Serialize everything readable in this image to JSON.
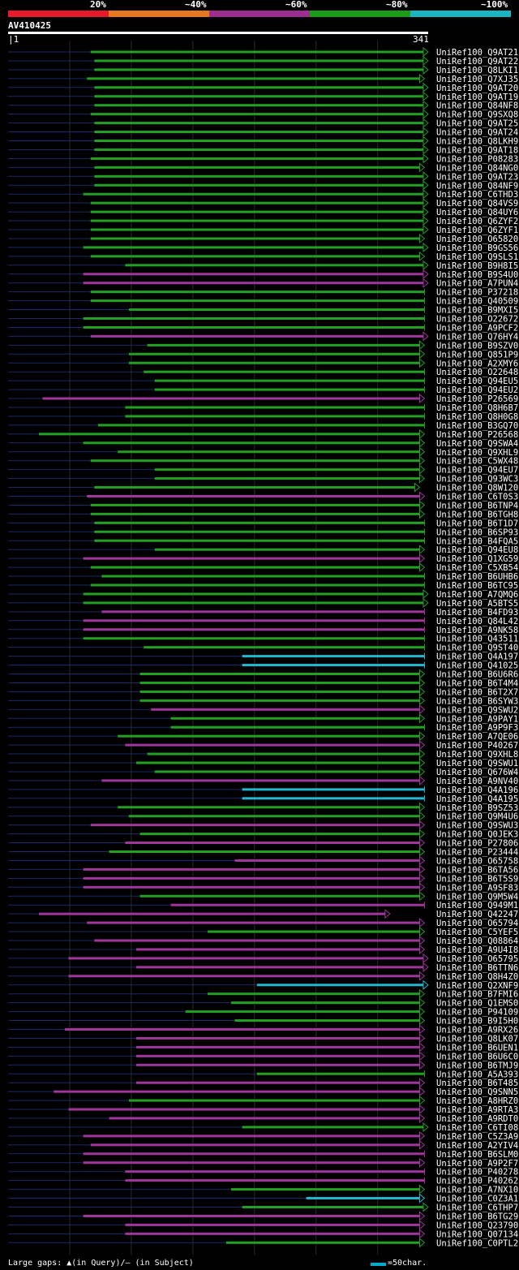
{
  "legend": [
    {
      "label": "20%",
      "color": "#e8192c"
    },
    {
      "label": "~40%",
      "color": "#e87722"
    },
    {
      "label": "~60%",
      "color": "#9b2f8f"
    },
    {
      "label": "~80%",
      "color": "#1a9b1a"
    },
    {
      "label": "~100%",
      "color": "#19b5c0"
    }
  ],
  "query": {
    "name": "AV410425",
    "start": "1",
    "end": "341",
    "length": 341
  },
  "footer": {
    "gaps_text": "Large gaps: ▲(in Query)/– (in Subject)",
    "scale_text": "=50char."
  },
  "chart_data": {
    "type": "alignment",
    "query_length": 341,
    "hits": [
      {
        "name": "UniRef100_Q9AT21",
        "s": 67,
        "e": 341,
        "c": "g",
        "arrow": true
      },
      {
        "name": "UniRef100_Q9AT22",
        "s": 70,
        "e": 341,
        "c": "g",
        "arrow": true
      },
      {
        "name": "UniRef100_Q8LKI1",
        "s": 70,
        "e": 341,
        "c": "g",
        "arrow": true
      },
      {
        "name": "UniRef100_Q7XJ35",
        "s": 64,
        "e": 338,
        "c": "g",
        "arrow": true
      },
      {
        "name": "UniRef100_Q9AT20",
        "s": 70,
        "e": 341,
        "c": "g",
        "arrow": true
      },
      {
        "name": "UniRef100_Q9AT19",
        "s": 70,
        "e": 341,
        "c": "g",
        "arrow": true
      },
      {
        "name": "UniRef100_Q84NF8",
        "s": 70,
        "e": 341,
        "c": "g",
        "arrow": true
      },
      {
        "name": "UniRef100_Q9SXQ8",
        "s": 67,
        "e": 341,
        "c": "g",
        "arrow": true
      },
      {
        "name": "UniRef100_Q9AT25",
        "s": 70,
        "e": 341,
        "c": "g",
        "arrow": true
      },
      {
        "name": "UniRef100_Q9AT24",
        "s": 70,
        "e": 341,
        "c": "g",
        "arrow": true
      },
      {
        "name": "UniRef100_Q8LKH9",
        "s": 70,
        "e": 341,
        "c": "g",
        "arrow": true
      },
      {
        "name": "UniRef100_Q9AT18",
        "s": 70,
        "e": 341,
        "c": "g",
        "arrow": true
      },
      {
        "name": "UniRef100_P08283",
        "s": 67,
        "e": 341,
        "c": "g",
        "arrow": true
      },
      {
        "name": "UniRef100_Q84NG0",
        "s": 70,
        "e": 338,
        "c": "g",
        "arrow": true
      },
      {
        "name": "UniRef100_Q9AT23",
        "s": 70,
        "e": 341,
        "c": "g",
        "arrow": true
      },
      {
        "name": "UniRef100_Q84NF9",
        "s": 70,
        "e": 341,
        "c": "g",
        "arrow": true
      },
      {
        "name": "UniRef100_C6THD3",
        "s": 61,
        "e": 341,
        "c": "g",
        "arrow": true
      },
      {
        "name": "UniRef100_Q84VS9",
        "s": 67,
        "e": 341,
        "c": "g",
        "arrow": true
      },
      {
        "name": "UniRef100_Q84UY6",
        "s": 67,
        "e": 341,
        "c": "g",
        "arrow": true
      },
      {
        "name": "UniRef100_Q6ZYF2",
        "s": 67,
        "e": 341,
        "c": "g",
        "arrow": true
      },
      {
        "name": "UniRef100_Q6ZYF1",
        "s": 67,
        "e": 341,
        "c": "g",
        "arrow": true
      },
      {
        "name": "UniRef100_O65820",
        "s": 67,
        "e": 338,
        "c": "g",
        "arrow": true
      },
      {
        "name": "UniRef100_B9GS56",
        "s": 61,
        "e": 341,
        "c": "g",
        "arrow": true
      },
      {
        "name": "UniRef100_Q9SLS1",
        "s": 67,
        "e": 338,
        "c": "g",
        "arrow": true
      },
      {
        "name": "UniRef100_B9H8I5",
        "s": 95,
        "e": 341,
        "c": "g",
        "arrow": true
      },
      {
        "name": "UniRef100_B9S4U0",
        "s": 61,
        "e": 341,
        "c": "p",
        "arrow": true
      },
      {
        "name": "UniRef100_A7PUN4",
        "s": 61,
        "e": 341,
        "c": "p",
        "arrow": true
      },
      {
        "name": "UniRef100_P37218",
        "s": 67,
        "e": 338,
        "c": "g",
        "arrow": false
      },
      {
        "name": "UniRef100_Q40509",
        "s": 67,
        "e": 338,
        "c": "g",
        "arrow": false
      },
      {
        "name": "UniRef100_B9MXI5",
        "s": 98,
        "e": 338,
        "c": "g",
        "arrow": false
      },
      {
        "name": "UniRef100_O22672",
        "s": 61,
        "e": 338,
        "c": "g",
        "arrow": false
      },
      {
        "name": "UniRef100_A9PCF2",
        "s": 61,
        "e": 338,
        "c": "g",
        "arrow": false
      },
      {
        "name": "UniRef100_Q76HY4",
        "s": 67,
        "e": 341,
        "c": "p",
        "arrow": true
      },
      {
        "name": "UniRef100_B9SZV0",
        "s": 113,
        "e": 338,
        "c": "g",
        "arrow": true
      },
      {
        "name": "UniRef100_Q851P9",
        "s": 98,
        "e": 338,
        "c": "g",
        "arrow": true
      },
      {
        "name": "UniRef100_A2XMY6",
        "s": 98,
        "e": 338,
        "c": "g",
        "arrow": true
      },
      {
        "name": "UniRef100_O22648",
        "s": 110,
        "e": 338,
        "c": "g",
        "arrow": false
      },
      {
        "name": "UniRef100_Q94EU5",
        "s": 119,
        "e": 338,
        "c": "g",
        "arrow": false
      },
      {
        "name": "UniRef100_Q94EU2",
        "s": 119,
        "e": 338,
        "c": "g",
        "arrow": false
      },
      {
        "name": "UniRef100_P26569",
        "s": 28,
        "e": 338,
        "c": "p",
        "arrow": true
      },
      {
        "name": "UniRef100_Q8H6B7",
        "s": 95,
        "e": 338,
        "c": "g",
        "arrow": false
      },
      {
        "name": "UniRef100_Q8H0G8",
        "s": 95,
        "e": 338,
        "c": "g",
        "arrow": false
      },
      {
        "name": "UniRef100_B3GQ70",
        "s": 73,
        "e": 338,
        "c": "g",
        "arrow": false
      },
      {
        "name": "UniRef100_P26568",
        "s": 25,
        "e": 338,
        "c": "g",
        "arrow": true
      },
      {
        "name": "UniRef100_Q9SWA4",
        "s": 61,
        "e": 338,
        "c": "g",
        "arrow": true
      },
      {
        "name": "UniRef100_Q9XHL9",
        "s": 89,
        "e": 338,
        "c": "g",
        "arrow": true
      },
      {
        "name": "UniRef100_C5WX48",
        "s": 67,
        "e": 338,
        "c": "g",
        "arrow": true
      },
      {
        "name": "UniRef100_Q94EU7",
        "s": 119,
        "e": 338,
        "c": "g",
        "arrow": true
      },
      {
        "name": "UniRef100_Q93WC3",
        "s": 119,
        "e": 338,
        "c": "g",
        "arrow": true
      },
      {
        "name": "UniRef100_Q8W120",
        "s": 70,
        "e": 334,
        "c": "g",
        "arrow": true
      },
      {
        "name": "UniRef100_C6T0S3",
        "s": 64,
        "e": 338,
        "c": "p",
        "arrow": true
      },
      {
        "name": "UniRef100_B6TNP4",
        "s": 67,
        "e": 338,
        "c": "g",
        "arrow": true
      },
      {
        "name": "UniRef100_B6TGH8",
        "s": 67,
        "e": 338,
        "c": "g",
        "arrow": true
      },
      {
        "name": "UniRef100_B6T1D7",
        "s": 70,
        "e": 338,
        "c": "g",
        "arrow": false
      },
      {
        "name": "UniRef100_B6SP93",
        "s": 70,
        "e": 338,
        "c": "g",
        "arrow": false
      },
      {
        "name": "UniRef100_B4FQA5",
        "s": 70,
        "e": 338,
        "c": "g",
        "arrow": false
      },
      {
        "name": "UniRef100_Q94EU8",
        "s": 119,
        "e": 338,
        "c": "g",
        "arrow": true
      },
      {
        "name": "UniRef100_Q1XG59",
        "s": 61,
        "e": 338,
        "c": "p",
        "arrow": true
      },
      {
        "name": "UniRef100_C5XB54",
        "s": 67,
        "e": 338,
        "c": "g",
        "arrow": true
      },
      {
        "name": "UniRef100_B6UHB6",
        "s": 76,
        "e": 338,
        "c": "g",
        "arrow": false
      },
      {
        "name": "UniRef100_B6TC95",
        "s": 67,
        "e": 338,
        "c": "g",
        "arrow": false
      },
      {
        "name": "UniRef100_A7QMQ6",
        "s": 61,
        "e": 341,
        "c": "g",
        "arrow": true
      },
      {
        "name": "UniRef100_A5BTS5",
        "s": 61,
        "e": 341,
        "c": "g",
        "arrow": true
      },
      {
        "name": "UniRef100_B4FD93",
        "s": 76,
        "e": 338,
        "c": "p",
        "arrow": false
      },
      {
        "name": "UniRef100_Q84L42",
        "s": 61,
        "e": 338,
        "c": "p",
        "arrow": false
      },
      {
        "name": "UniRef100_A9NK58",
        "s": 61,
        "e": 338,
        "c": "p",
        "arrow": false
      },
      {
        "name": "UniRef100_Q43511",
        "s": 61,
        "e": 338,
        "c": "g",
        "arrow": false
      },
      {
        "name": "UniRef100_Q9ST40",
        "s": 110,
        "e": 338,
        "c": "g",
        "arrow": false
      },
      {
        "name": "UniRef100_Q4A197",
        "s": 190,
        "e": 338,
        "c": "c",
        "arrow": false
      },
      {
        "name": "UniRef100_Q41025",
        "s": 190,
        "e": 338,
        "c": "c",
        "arrow": false
      },
      {
        "name": "UniRef100_B6U6R6",
        "s": 107,
        "e": 338,
        "c": "g",
        "arrow": true
      },
      {
        "name": "UniRef100_B6T4M4",
        "s": 107,
        "e": 338,
        "c": "g",
        "arrow": true
      },
      {
        "name": "UniRef100_B6T2X7",
        "s": 107,
        "e": 338,
        "c": "g",
        "arrow": true
      },
      {
        "name": "UniRef100_B6SYW3",
        "s": 107,
        "e": 338,
        "c": "g",
        "arrow": true
      },
      {
        "name": "UniRef100_Q9SWU2",
        "s": 116,
        "e": 338,
        "c": "p",
        "arrow": true
      },
      {
        "name": "UniRef100_A9PAY1",
        "s": 132,
        "e": 338,
        "c": "g",
        "arrow": true
      },
      {
        "name": "UniRef100_A9P9F3",
        "s": 132,
        "e": 338,
        "c": "g",
        "arrow": false
      },
      {
        "name": "UniRef100_A7QE06",
        "s": 89,
        "e": 338,
        "c": "g",
        "arrow": true
      },
      {
        "name": "UniRef100_P40267",
        "s": 95,
        "e": 338,
        "c": "p",
        "arrow": true
      },
      {
        "name": "UniRef100_Q9XHL8",
        "s": 113,
        "e": 338,
        "c": "g",
        "arrow": true
      },
      {
        "name": "UniRef100_Q9SWU1",
        "s": 104,
        "e": 338,
        "c": "g",
        "arrow": true
      },
      {
        "name": "UniRef100_Q676W4",
        "s": 119,
        "e": 338,
        "c": "g",
        "arrow": true
      },
      {
        "name": "UniRef100_A9NV40",
        "s": 76,
        "e": 338,
        "c": "p",
        "arrow": true
      },
      {
        "name": "UniRef100_Q4A196",
        "s": 190,
        "e": 338,
        "c": "c",
        "arrow": false
      },
      {
        "name": "UniRef100_Q4A195",
        "s": 190,
        "e": 338,
        "c": "c",
        "arrow": false
      },
      {
        "name": "UniRef100_B9SZ53",
        "s": 89,
        "e": 338,
        "c": "g",
        "arrow": true
      },
      {
        "name": "UniRef100_Q9M4U6",
        "s": 98,
        "e": 338,
        "c": "g",
        "arrow": true
      },
      {
        "name": "UniRef100_Q9SWU3",
        "s": 67,
        "e": 338,
        "c": "p",
        "arrow": true
      },
      {
        "name": "UniRef100_Q0JEK3",
        "s": 107,
        "e": 338,
        "c": "g",
        "arrow": true
      },
      {
        "name": "UniRef100_P27806",
        "s": 95,
        "e": 338,
        "c": "p",
        "arrow": true
      },
      {
        "name": "UniRef100_P23444",
        "s": 82,
        "e": 338,
        "c": "g",
        "arrow": true
      },
      {
        "name": "UniRef100_O65758",
        "s": 184,
        "e": 338,
        "c": "p",
        "arrow": true
      },
      {
        "name": "UniRef100_B6TA56",
        "s": 61,
        "e": 338,
        "c": "p",
        "arrow": true
      },
      {
        "name": "UniRef100_B6T5S9",
        "s": 61,
        "e": 338,
        "c": "p",
        "arrow": true
      },
      {
        "name": "UniRef100_A9SF83",
        "s": 61,
        "e": 338,
        "c": "p",
        "arrow": true
      },
      {
        "name": "UniRef100_Q9M5W4",
        "s": 107,
        "e": 338,
        "c": "g",
        "arrow": true
      },
      {
        "name": "UniRef100_Q949M1",
        "s": 132,
        "e": 338,
        "c": "p",
        "arrow": false
      },
      {
        "name": "UniRef100_Q42247",
        "s": 25,
        "e": 310,
        "c": "p",
        "arrow": true
      },
      {
        "name": "UniRef100_O65794",
        "s": 64,
        "e": 338,
        "c": "p",
        "arrow": true
      },
      {
        "name": "UniRef100_C5YEF5",
        "s": 162,
        "e": 338,
        "c": "g",
        "arrow": true
      },
      {
        "name": "UniRef100_Q08864",
        "s": 70,
        "e": 338,
        "c": "p",
        "arrow": true
      },
      {
        "name": "UniRef100_A9U4I8",
        "s": 104,
        "e": 338,
        "c": "p",
        "arrow": true
      },
      {
        "name": "UniRef100_O65795",
        "s": 49,
        "e": 341,
        "c": "p",
        "arrow": true
      },
      {
        "name": "UniRef100_B6TTN6",
        "s": 104,
        "e": 341,
        "c": "p",
        "arrow": true
      },
      {
        "name": "UniRef100_Q8H4Z0",
        "s": 49,
        "e": 338,
        "c": "p",
        "arrow": true
      },
      {
        "name": "UniRef100_Q2XNF9",
        "s": 202,
        "e": 341,
        "c": "c",
        "arrow": true
      },
      {
        "name": "UniRef100_B7FMI6",
        "s": 162,
        "e": 338,
        "c": "g",
        "arrow": true
      },
      {
        "name": "UniRef100_Q1EMS0",
        "s": 181,
        "e": 338,
        "c": "g",
        "arrow": true
      },
      {
        "name": "UniRef100_P94109",
        "s": 144,
        "e": 338,
        "c": "g",
        "arrow": true
      },
      {
        "name": "UniRef100_B9I5H0",
        "s": 184,
        "e": 338,
        "c": "g",
        "arrow": true
      },
      {
        "name": "UniRef100_A9RX26",
        "s": 46,
        "e": 338,
        "c": "p",
        "arrow": true
      },
      {
        "name": "UniRef100_Q8LK07",
        "s": 104,
        "e": 338,
        "c": "p",
        "arrow": true
      },
      {
        "name": "UniRef100_B6UEN1",
        "s": 104,
        "e": 338,
        "c": "p",
        "arrow": true
      },
      {
        "name": "UniRef100_B6U6C0",
        "s": 104,
        "e": 338,
        "c": "p",
        "arrow": true
      },
      {
        "name": "UniRef100_B6TMJ9",
        "s": 104,
        "e": 338,
        "c": "p",
        "arrow": true
      },
      {
        "name": "UniRef100_A5A393",
        "s": 202,
        "e": 338,
        "c": "g",
        "arrow": false
      },
      {
        "name": "UniRef100_B6T485",
        "s": 104,
        "e": 338,
        "c": "p",
        "arrow": true
      },
      {
        "name": "UniRef100_Q9SNN5",
        "s": 37,
        "e": 338,
        "c": "p",
        "arrow": true
      },
      {
        "name": "UniRef100_A8HRZ0",
        "s": 98,
        "e": 338,
        "c": "g",
        "arrow": true
      },
      {
        "name": "UniRef100_A9RTA3",
        "s": 49,
        "e": 338,
        "c": "p",
        "arrow": true
      },
      {
        "name": "UniRef100_A9RDT0",
        "s": 82,
        "e": 338,
        "c": "p",
        "arrow": true
      },
      {
        "name": "UniRef100_C6TI08",
        "s": 190,
        "e": 341,
        "c": "g",
        "arrow": true
      },
      {
        "name": "UniRef100_C5Z3A9",
        "s": 61,
        "e": 338,
        "c": "p",
        "arrow": true
      },
      {
        "name": "UniRef100_A2YIV4",
        "s": 67,
        "e": 338,
        "c": "p",
        "arrow": true
      },
      {
        "name": "UniRef100_B6SLM0",
        "s": 61,
        "e": 338,
        "c": "p",
        "arrow": false
      },
      {
        "name": "UniRef100_A9P2F7",
        "s": 61,
        "e": 338,
        "c": "p",
        "arrow": true
      },
      {
        "name": "UniRef100_P40278",
        "s": 95,
        "e": 338,
        "c": "p",
        "arrow": false
      },
      {
        "name": "UniRef100_P40262",
        "s": 95,
        "e": 338,
        "c": "p",
        "arrow": false
      },
      {
        "name": "UniRef100_A7NX10",
        "s": 181,
        "e": 338,
        "c": "g",
        "arrow": true
      },
      {
        "name": "UniRef100_C0Z3A1",
        "s": 242,
        "e": 338,
        "c": "c",
        "arrow": true
      },
      {
        "name": "UniRef100_C6THP7",
        "s": 190,
        "e": 341,
        "c": "g",
        "arrow": true
      },
      {
        "name": "UniRef100_B6TG29",
        "s": 61,
        "e": 338,
        "c": "p",
        "arrow": true
      },
      {
        "name": "UniRef100_Q23790",
        "s": 95,
        "e": 338,
        "c": "p",
        "arrow": true
      },
      {
        "name": "UniRef100_Q07134",
        "s": 95,
        "e": 338,
        "c": "p",
        "arrow": true
      },
      {
        "name": "UniRef100_C0PTL2",
        "s": 177,
        "e": 338,
        "c": "g",
        "arrow": true
      }
    ]
  }
}
